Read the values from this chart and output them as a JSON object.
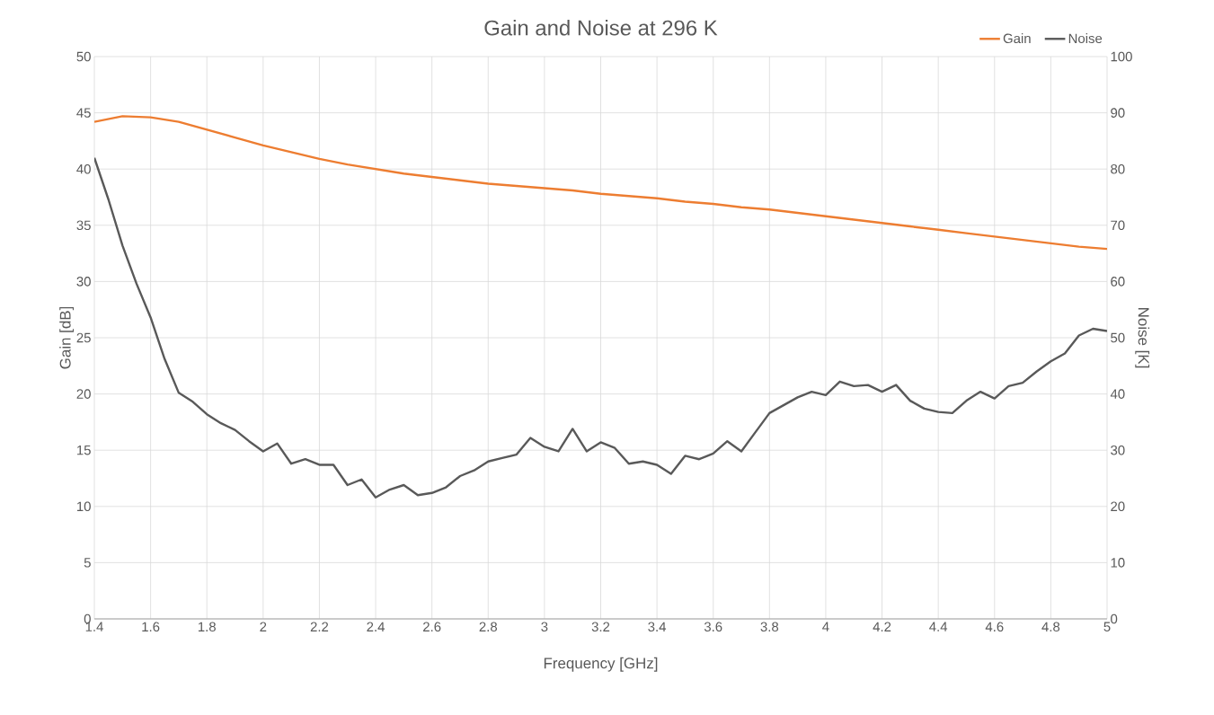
{
  "chart_data": {
    "type": "line",
    "title": "Gain and Noise at 296 K",
    "xlabel": "Frequency [GHz]",
    "ylabel": "Gain [dB]",
    "y2label": "Noise [K]",
    "xlim": [
      1.4,
      5
    ],
    "xticks": [
      1.4,
      1.6,
      1.8,
      2,
      2.2,
      2.4,
      2.6,
      2.8,
      3,
      3.2,
      3.4,
      3.6,
      3.8,
      4,
      4.2,
      4.4,
      4.6,
      4.8,
      5
    ],
    "ylim": [
      0,
      50
    ],
    "yticks": [
      0,
      5,
      10,
      15,
      20,
      25,
      30,
      35,
      40,
      45,
      50
    ],
    "y2lim": [
      0,
      100
    ],
    "y2ticks": [
      0,
      10,
      20,
      30,
      40,
      50,
      60,
      70,
      80,
      90,
      100
    ],
    "grid": true,
    "legend": "top right",
    "marker": "none",
    "line_style": "solid",
    "series": [
      {
        "name": "Gain",
        "color": "#ed7d31",
        "x": [
          1.4,
          1.5,
          1.6,
          1.7,
          1.8,
          1.9,
          2.0,
          2.1,
          2.2,
          2.3,
          2.4,
          2.5,
          2.6,
          2.7,
          2.8,
          2.9,
          3.0,
          3.1,
          3.2,
          3.3,
          3.4,
          3.5,
          3.6,
          3.7,
          3.8,
          3.9,
          4.0,
          4.1,
          4.2,
          4.3,
          4.4,
          4.5,
          4.6,
          4.7,
          4.8,
          4.9,
          5.0
        ],
        "values": [
          44.2,
          44.7,
          44.6,
          44.2,
          43.5,
          42.8,
          42.1,
          41.5,
          40.9,
          40.4,
          40.0,
          39.6,
          39.3,
          39.0,
          38.7,
          38.5,
          38.3,
          38.1,
          37.8,
          37.6,
          37.4,
          37.1,
          36.9,
          36.6,
          36.4,
          36.1,
          35.8,
          35.5,
          35.2,
          34.9,
          34.6,
          34.3,
          34.0,
          33.7,
          33.4,
          33.1,
          32.9
        ]
      },
      {
        "name": "Noise",
        "color": "#595959",
        "axis": "y2",
        "x": [
          1.4,
          1.45,
          1.5,
          1.55,
          1.6,
          1.65,
          1.7,
          1.75,
          1.8,
          1.85,
          1.9,
          1.95,
          2.0,
          2.05,
          2.1,
          2.15,
          2.2,
          2.25,
          2.3,
          2.35,
          2.4,
          2.45,
          2.5,
          2.55,
          2.6,
          2.65,
          2.7,
          2.75,
          2.8,
          2.85,
          2.9,
          2.95,
          3.0,
          3.05,
          3.1,
          3.15,
          3.2,
          3.25,
          3.3,
          3.35,
          3.4,
          3.45,
          3.5,
          3.55,
          3.6,
          3.65,
          3.7,
          3.75,
          3.8,
          3.85,
          3.9,
          3.95,
          4.0,
          4.05,
          4.1,
          4.15,
          4.2,
          4.25,
          4.3,
          4.35,
          4.4,
          4.45,
          4.5,
          4.55,
          4.6,
          4.65,
          4.7,
          4.75,
          4.8,
          4.85,
          4.9,
          4.95,
          5.0
        ],
        "values": [
          82,
          74.6,
          66.4,
          59.6,
          53.6,
          46.2,
          40.2,
          38.6,
          36.4,
          34.8,
          33.6,
          31.6,
          29.8,
          31.2,
          27.6,
          28.4,
          27.4,
          27.4,
          23.8,
          24.8,
          21.6,
          23,
          23.8,
          22,
          22.4,
          23.4,
          25.4,
          26.4,
          28,
          28.6,
          29.2,
          32.2,
          30.6,
          29.8,
          33.8,
          29.8,
          31.4,
          30.4,
          27.6,
          28,
          27.4,
          25.8,
          29,
          28.4,
          29.4,
          31.6,
          29.8,
          33.2,
          36.6,
          38,
          39.4,
          40.4,
          39.8,
          42.2,
          41.4,
          41.6,
          40.4,
          41.6,
          38.8,
          37.4,
          36.8,
          36.6,
          38.8,
          40.4,
          39.2,
          41.4,
          42,
          44,
          45.8,
          47.2,
          50.4,
          51.6,
          51.2
        ]
      }
    ]
  }
}
